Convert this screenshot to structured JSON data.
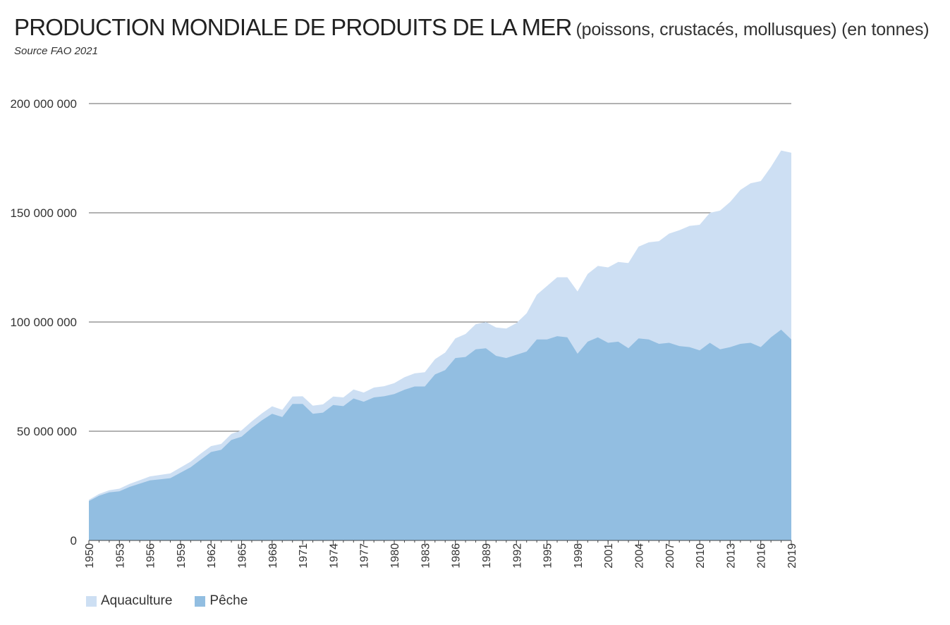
{
  "header": {
    "title": "PRODUCTION MONDIALE DE PRODUITS DE LA MER",
    "subtitle": "(poissons, crustacés, mollusques) (en tonnes)",
    "source": "Source FAO 2021"
  },
  "colors": {
    "aquaculture": "#cddff3",
    "peche": "#92bee1",
    "gridline": "#333333"
  },
  "chart_data": {
    "type": "area",
    "stacked": true,
    "title": "PRODUCTION MONDIALE DE PRODUITS DE LA MER",
    "subtitle": "(poissons, crustacés, mollusques) (en tonnes)",
    "xlabel": "",
    "ylabel": "",
    "ylim": [
      0,
      200000000
    ],
    "y_ticks": [
      0,
      50000000,
      100000000,
      150000000,
      200000000
    ],
    "y_tick_labels": [
      "0",
      "50 000 000",
      "100 000 000",
      "150 000 000",
      "200 000 000"
    ],
    "x_tick_labels": [
      "1950",
      "1953",
      "1956",
      "1959",
      "1962",
      "1965",
      "1968",
      "1971",
      "1974",
      "1977",
      "1980",
      "1983",
      "1986",
      "1989",
      "1992",
      "1995",
      "1998",
      "2001",
      "2004",
      "2007",
      "2010",
      "2013",
      "2016",
      "2019"
    ],
    "grid": true,
    "legend_position": "bottom-left",
    "x": [
      1950,
      1951,
      1952,
      1953,
      1954,
      1955,
      1956,
      1957,
      1958,
      1959,
      1960,
      1961,
      1962,
      1963,
      1964,
      1965,
      1966,
      1967,
      1968,
      1969,
      1970,
      1971,
      1972,
      1973,
      1974,
      1975,
      1976,
      1977,
      1978,
      1979,
      1980,
      1981,
      1982,
      1983,
      1984,
      1985,
      1986,
      1987,
      1988,
      1989,
      1990,
      1991,
      1992,
      1993,
      1994,
      1995,
      1996,
      1997,
      1998,
      1999,
      2000,
      2001,
      2002,
      2003,
      2004,
      2005,
      2006,
      2007,
      2008,
      2009,
      2010,
      2011,
      2012,
      2013,
      2014,
      2015,
      2016,
      2017,
      2018,
      2019
    ],
    "series": [
      {
        "name": "Pêche",
        "values": [
          18000000,
          20500000,
          22000000,
          22500000,
          24500000,
          26000000,
          27500000,
          28000000,
          28500000,
          31000000,
          33500000,
          37000000,
          40500000,
          41500000,
          46000000,
          47500000,
          51500000,
          55000000,
          58000000,
          56500000,
          62500000,
          62500000,
          58000000,
          58500000,
          62000000,
          61500000,
          65000000,
          63500000,
          65500000,
          66000000,
          67000000,
          69000000,
          70500000,
          70500000,
          76000000,
          78000000,
          83500000,
          84000000,
          87500000,
          88000000,
          84500000,
          83500000,
          85000000,
          86500000,
          92000000,
          92000000,
          93500000,
          93000000,
          85500000,
          91000000,
          93000000,
          90500000,
          91000000,
          88000000,
          92500000,
          92000000,
          90000000,
          90500000,
          89000000,
          88500000,
          87000000,
          90500000,
          87500000,
          88500000,
          90000000,
          90500000,
          88500000,
          93000000,
          96500000,
          92000000
        ]
      },
      {
        "name": "Aquaculture",
        "values": [
          600000,
          800000,
          1000000,
          1200000,
          1400000,
          1600000,
          1800000,
          2000000,
          2200000,
          2400000,
          2600000,
          2800000,
          2700000,
          2700000,
          2800000,
          2900000,
          3000000,
          3200000,
          3400000,
          3300000,
          3400000,
          3500000,
          3700000,
          3800000,
          3900000,
          4000000,
          4100000,
          4200000,
          4500000,
          4600000,
          5000000,
          5700000,
          6000000,
          6500000,
          7000000,
          8000000,
          9000000,
          10500000,
          11500000,
          12000000,
          13000000,
          13500000,
          14500000,
          17500000,
          20500000,
          24500000,
          27000000,
          27500000,
          28500000,
          31000000,
          32700000,
          34500000,
          36500000,
          39000000,
          42000000,
          44500000,
          47000000,
          50000000,
          53000000,
          55500000,
          57500000,
          59500000,
          63500000,
          66500000,
          70500000,
          73000000,
          76000000,
          78000000,
          82000000,
          85500000
        ]
      }
    ]
  },
  "legend": {
    "items": [
      {
        "label": "Aquaculture",
        "color": "#cddff3"
      },
      {
        "label": "Pêche",
        "color": "#92bee1"
      }
    ]
  }
}
